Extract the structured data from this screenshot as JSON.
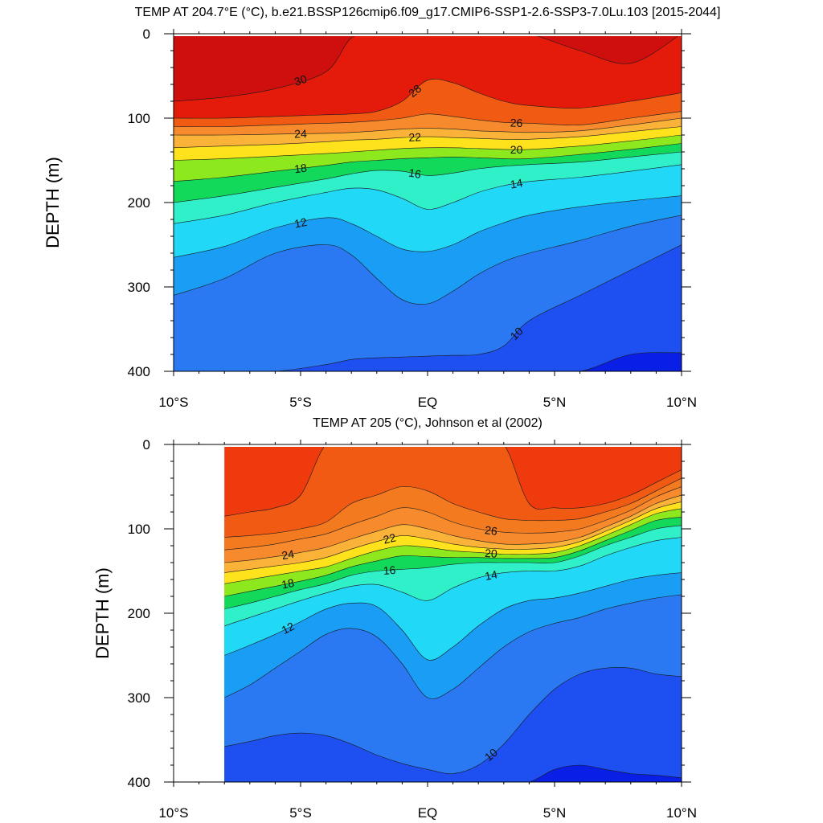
{
  "chart_data": [
    {
      "type": "contour",
      "title": "TEMP AT 204.7°E (°C), b.e21.BSSP126cmip6.f09_g17.CMIP6-SSP1-2.6-SSP3-7.0Lu.103 [2015-2044]",
      "ylabel": "DEPTH (m)",
      "xlabel": "",
      "xlim": [
        -10,
        10
      ],
      "ylim": [
        0,
        400
      ],
      "y_inverted": true,
      "xticks": [
        -10,
        -5,
        0,
        5,
        10
      ],
      "xtick_labels": [
        "10°S",
        "5°S",
        "EQ",
        "5°N",
        "10°N"
      ],
      "yticks": [
        0,
        100,
        200,
        300,
        400
      ],
      "ytick_labels": [
        "0",
        "100",
        "200",
        "300",
        "400"
      ],
      "data_xrange": [
        -10,
        10
      ],
      "contour_interval": 1,
      "labeled_levels": [
        10,
        12,
        14,
        16,
        18,
        20,
        22,
        24,
        26,
        28,
        30
      ],
      "levels_rendered": [
        10,
        11,
        12,
        13,
        14,
        15,
        16,
        17,
        18,
        19,
        20,
        21,
        22,
        23,
        24,
        25,
        26,
        27,
        28,
        29,
        30
      ],
      "isotherm_depths": {
        "x": [
          -10,
          -8,
          -6,
          -4,
          -3,
          -2,
          -1,
          0,
          1,
          2,
          3,
          4,
          6,
          8,
          10
        ],
        "T30": [
          80,
          75,
          65,
          45,
          5,
          0,
          0,
          0,
          0,
          0,
          0,
          0,
          20,
          35,
          0
        ],
        "T28": [
          100,
          100,
          98,
          96,
          95,
          92,
          80,
          55,
          58,
          70,
          80,
          85,
          88,
          80,
          70
        ],
        "T26": [
          110,
          110,
          108,
          106,
          105,
          103,
          100,
          95,
          98,
          102,
          105,
          106,
          108,
          100,
          92
        ],
        "T24": [
          120,
          120,
          119,
          118,
          117,
          115,
          113,
          112,
          113,
          115,
          116,
          117,
          115,
          108,
          100
        ],
        "T22": [
          135,
          133,
          131,
          128,
          126,
          125,
          123,
          122,
          123,
          124,
          125,
          125,
          122,
          116,
          110
        ],
        "T20": [
          150,
          148,
          145,
          142,
          140,
          138,
          136,
          135,
          135,
          136,
          137,
          137,
          133,
          127,
          120
        ],
        "T18": [
          175,
          170,
          163,
          156,
          152,
          150,
          148,
          147,
          146,
          147,
          148,
          148,
          143,
          137,
          130
        ],
        "T16": [
          200,
          192,
          182,
          172,
          166,
          162,
          163,
          168,
          165,
          160,
          157,
          155,
          152,
          146,
          140
        ],
        "T14": [
          225,
          215,
          200,
          188,
          183,
          185,
          195,
          208,
          200,
          188,
          180,
          175,
          170,
          163,
          155
        ],
        "T12": [
          265,
          252,
          230,
          218,
          225,
          240,
          255,
          258,
          250,
          235,
          224,
          215,
          205,
          198,
          192
        ],
        "T11": [
          310,
          290,
          260,
          250,
          262,
          290,
          315,
          320,
          305,
          285,
          270,
          260,
          245,
          228,
          215
        ],
        "T10": [
          400,
          400,
          400,
          392,
          386,
          384,
          383,
          382,
          381,
          380,
          370,
          340,
          310,
          280,
          250
        ],
        "T9": [
          400,
          400,
          400,
          400,
          400,
          400,
          400,
          400,
          400,
          400,
          400,
          400,
          400,
          380,
          378
        ]
      }
    },
    {
      "type": "contour",
      "title": "TEMP AT 205 (°C), Johnson et al (2002)",
      "ylabel": "DEPTH (m)",
      "xlabel": "",
      "xlim": [
        -10,
        10
      ],
      "ylim": [
        0,
        400
      ],
      "y_inverted": true,
      "xticks": [
        -10,
        -5,
        0,
        5,
        10
      ],
      "xtick_labels": [
        "10°S",
        "5°S",
        "EQ",
        "5°N",
        "10°N"
      ],
      "yticks": [
        0,
        100,
        200,
        300,
        400
      ],
      "ytick_labels": [
        "0",
        "100",
        "200",
        "300",
        "400"
      ],
      "data_xrange": [
        -8,
        10
      ],
      "contour_interval": 1,
      "labeled_levels": [
        10,
        12,
        14,
        16,
        18,
        20,
        22,
        24,
        26
      ],
      "levels_rendered": [
        10,
        11,
        12,
        13,
        14,
        15,
        16,
        17,
        18,
        19,
        20,
        21,
        22,
        23,
        24,
        25,
        26,
        27,
        28
      ],
      "isotherm_depths": {
        "x": [
          -8,
          -7,
          -6,
          -5,
          -4,
          -3,
          -2,
          -1,
          0,
          1,
          2,
          3,
          4,
          5,
          6,
          7,
          8,
          9,
          10
        ],
        "T28": [
          85,
          80,
          75,
          60,
          0,
          0,
          0,
          0,
          0,
          0,
          0,
          0,
          70,
          75,
          75,
          70,
          60,
          45,
          30
        ],
        "T27": [
          110,
          108,
          105,
          100,
          92,
          70,
          60,
          50,
          55,
          70,
          80,
          88,
          90,
          90,
          88,
          80,
          70,
          55,
          40
        ],
        "T26": [
          125,
          122,
          118,
          112,
          106,
          95,
          85,
          75,
          80,
          92,
          100,
          104,
          105,
          104,
          100,
          90,
          78,
          62,
          50
        ],
        "T24": [
          140,
          137,
          133,
          128,
          122,
          112,
          103,
          95,
          100,
          108,
          114,
          118,
          118,
          116,
          110,
          98,
          85,
          70,
          60
        ],
        "T22": [
          152,
          148,
          144,
          140,
          134,
          124,
          115,
          108,
          112,
          118,
          122,
          124,
          124,
          122,
          115,
          103,
          90,
          76,
          68
        ],
        "T20": [
          165,
          160,
          155,
          150,
          145,
          135,
          126,
          120,
          122,
          126,
          128,
          130,
          130,
          128,
          120,
          108,
          95,
          82,
          76
        ],
        "T18": [
          180,
          174,
          168,
          162,
          155,
          145,
          138,
          132,
          133,
          134,
          134,
          135,
          135,
          134,
          126,
          114,
          102,
          90,
          86
        ],
        "T16": [
          195,
          188,
          180,
          172,
          165,
          155,
          150,
          148,
          146,
          142,
          140,
          140,
          140,
          140,
          132,
          120,
          110,
          100,
          96
        ],
        "T14": [
          215,
          205,
          195,
          185,
          176,
          168,
          166,
          175,
          185,
          170,
          158,
          152,
          150,
          150,
          144,
          132,
          122,
          114,
          110
        ],
        "T12": [
          250,
          238,
          225,
          210,
          195,
          188,
          192,
          220,
          255,
          240,
          215,
          195,
          185,
          182,
          176,
          168,
          160,
          155,
          152
        ],
        "T11": [
          300,
          285,
          265,
          245,
          225,
          218,
          228,
          260,
          300,
          290,
          265,
          240,
          222,
          212,
          205,
          195,
          188,
          182,
          178
        ],
        "T10": [
          358,
          352,
          345,
          342,
          345,
          355,
          368,
          378,
          385,
          390,
          380,
          355,
          320,
          290,
          272,
          265,
          265,
          272,
          275
        ],
        "T9": [
          400,
          400,
          400,
          400,
          400,
          400,
          400,
          400,
          400,
          400,
          400,
          400,
          400,
          385,
          380,
          385,
          390,
          392,
          395
        ]
      }
    }
  ]
}
